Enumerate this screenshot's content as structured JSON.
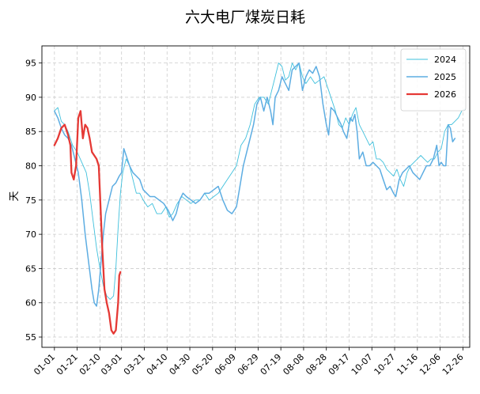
{
  "chart_data": {
    "type": "line",
    "title": "六大电厂煤炭日耗",
    "xlabel": "",
    "ylabel": "天",
    "ylim": [
      53.5,
      97.5
    ],
    "yticks": [
      55,
      60,
      65,
      70,
      75,
      80,
      85,
      90,
      95
    ],
    "xlim": [
      -11,
      365
    ],
    "x_tick_days": [
      0,
      20,
      40,
      59,
      79,
      99,
      119,
      139,
      159,
      179,
      199,
      219,
      239,
      259,
      279,
      299,
      319,
      339,
      359
    ],
    "x_tick_labels": [
      "01-01",
      "01-21",
      "02-10",
      "03-01",
      "03-21",
      "04-10",
      "04-30",
      "05-20",
      "06-09",
      "06-29",
      "07-19",
      "08-08",
      "08-28",
      "09-17",
      "10-07",
      "10-27",
      "11-16",
      "12-06",
      "12-26"
    ],
    "grid": true,
    "legend_position": "top-right",
    "series": [
      {
        "name": "2024",
        "color": "#3fc0dc",
        "width": 0.9,
        "points": [
          [
            0,
            88
          ],
          [
            3,
            88.5
          ],
          [
            6,
            86.5
          ],
          [
            9,
            86
          ],
          [
            12,
            85
          ],
          [
            16,
            83
          ],
          [
            20,
            82
          ],
          [
            24,
            80.5
          ],
          [
            28,
            79
          ],
          [
            31,
            76
          ],
          [
            34,
            72
          ],
          [
            37,
            68
          ],
          [
            40,
            65
          ],
          [
            43,
            62.5
          ],
          [
            46,
            61
          ],
          [
            49,
            60.5
          ],
          [
            52,
            61
          ],
          [
            54,
            65
          ],
          [
            56,
            71
          ],
          [
            58,
            76
          ],
          [
            60,
            79
          ],
          [
            63,
            81
          ],
          [
            66,
            80
          ],
          [
            69,
            78
          ],
          [
            72,
            76
          ],
          [
            75,
            76
          ],
          [
            78,
            75
          ],
          [
            82,
            74
          ],
          [
            86,
            74.5
          ],
          [
            90,
            73
          ],
          [
            94,
            73
          ],
          [
            98,
            74
          ],
          [
            101,
            72.5
          ],
          [
            104,
            73
          ],
          [
            108,
            74.5
          ],
          [
            112,
            75.5
          ],
          [
            116,
            75
          ],
          [
            120,
            74.5
          ],
          [
            124,
            75
          ],
          [
            128,
            75
          ],
          [
            132,
            76
          ],
          [
            136,
            75
          ],
          [
            140,
            75.5
          ],
          [
            144,
            76
          ],
          [
            148,
            77
          ],
          [
            152,
            78
          ],
          [
            156,
            79
          ],
          [
            160,
            80
          ],
          [
            164,
            83
          ],
          [
            168,
            84
          ],
          [
            172,
            86
          ],
          [
            176,
            89
          ],
          [
            180,
            90
          ],
          [
            184,
            90
          ],
          [
            188,
            89
          ],
          [
            191,
            91
          ],
          [
            194,
            93
          ],
          [
            197,
            95
          ],
          [
            200,
            94.5
          ],
          [
            203,
            92.5
          ],
          [
            206,
            93
          ],
          [
            209,
            95
          ],
          [
            212,
            94
          ],
          [
            215,
            95
          ],
          [
            218,
            93
          ],
          [
            221,
            92
          ],
          [
            225,
            93
          ],
          [
            229,
            92
          ],
          [
            233,
            92.5
          ],
          [
            237,
            93
          ],
          [
            241,
            91
          ],
          [
            244,
            89.5
          ],
          [
            247,
            88
          ],
          [
            250,
            86
          ],
          [
            253,
            85.5
          ],
          [
            256,
            87
          ],
          [
            259,
            86
          ],
          [
            262,
            87.5
          ],
          [
            265,
            88.5
          ],
          [
            268,
            86
          ],
          [
            271,
            85
          ],
          [
            274,
            84
          ],
          [
            277,
            83
          ],
          [
            280,
            83.5
          ],
          [
            283,
            81
          ],
          [
            286,
            81
          ],
          [
            289,
            80.5
          ],
          [
            292,
            79.5
          ],
          [
            295,
            79
          ],
          [
            298,
            78.5
          ],
          [
            301,
            79.5
          ],
          [
            304,
            78
          ],
          [
            307,
            77
          ],
          [
            310,
            79
          ],
          [
            313,
            80
          ],
          [
            316,
            80.5
          ],
          [
            319,
            81
          ],
          [
            322,
            81.5
          ],
          [
            325,
            81
          ],
          [
            328,
            80.5
          ],
          [
            331,
            81
          ],
          [
            334,
            81
          ],
          [
            337,
            82
          ],
          [
            340,
            82.5
          ],
          [
            343,
            85
          ],
          [
            346,
            86
          ],
          [
            349,
            86
          ],
          [
            352,
            86.5
          ],
          [
            355,
            87
          ],
          [
            358,
            88
          ],
          [
            361,
            88.3
          ]
        ]
      },
      {
        "name": "2025",
        "color": "#5dade2",
        "width": 1.5,
        "points": [
          [
            0,
            88
          ],
          [
            3,
            87
          ],
          [
            6,
            85.5
          ],
          [
            9,
            84.5
          ],
          [
            12,
            84
          ],
          [
            15,
            83
          ],
          [
            18,
            81
          ],
          [
            21,
            79
          ],
          [
            24,
            75
          ],
          [
            27,
            70
          ],
          [
            30,
            66
          ],
          [
            33,
            62
          ],
          [
            35,
            60
          ],
          [
            37,
            59.5
          ],
          [
            39,
            62
          ],
          [
            41,
            66
          ],
          [
            43,
            70
          ],
          [
            45,
            73
          ],
          [
            48,
            75
          ],
          [
            51,
            77
          ],
          [
            54,
            77.5
          ],
          [
            57,
            78.5
          ],
          [
            59,
            79
          ],
          [
            61,
            82.5
          ],
          [
            63,
            81.5
          ],
          [
            66,
            80
          ],
          [
            69,
            79
          ],
          [
            72,
            78.5
          ],
          [
            75,
            78
          ],
          [
            78,
            76.5
          ],
          [
            81,
            76
          ],
          [
            84,
            75.5
          ],
          [
            88,
            75.5
          ],
          [
            92,
            75
          ],
          [
            96,
            74.5
          ],
          [
            100,
            73.5
          ],
          [
            104,
            72
          ],
          [
            107,
            73
          ],
          [
            110,
            75
          ],
          [
            113,
            76
          ],
          [
            116,
            75.5
          ],
          [
            120,
            75
          ],
          [
            124,
            74.5
          ],
          [
            128,
            75
          ],
          [
            132,
            76
          ],
          [
            136,
            76
          ],
          [
            140,
            76.5
          ],
          [
            144,
            77
          ],
          [
            148,
            75
          ],
          [
            152,
            73.5
          ],
          [
            156,
            73
          ],
          [
            160,
            74
          ],
          [
            163,
            77
          ],
          [
            166,
            80
          ],
          [
            169,
            82
          ],
          [
            172,
            84
          ],
          [
            175,
            86
          ],
          [
            178,
            89
          ],
          [
            181,
            90
          ],
          [
            184,
            88
          ],
          [
            187,
            90
          ],
          [
            190,
            88
          ],
          [
            192,
            86
          ],
          [
            194,
            90
          ],
          [
            197,
            91
          ],
          [
            200,
            93
          ],
          [
            203,
            92
          ],
          [
            206,
            91
          ],
          [
            209,
            94
          ],
          [
            212,
            94.5
          ],
          [
            215,
            95
          ],
          [
            218,
            91
          ],
          [
            221,
            93
          ],
          [
            224,
            94
          ],
          [
            227,
            93.5
          ],
          [
            230,
            94.5
          ],
          [
            233,
            93
          ],
          [
            236,
            89
          ],
          [
            239,
            86
          ],
          [
            241,
            84.5
          ],
          [
            243,
            88.5
          ],
          [
            246,
            88
          ],
          [
            249,
            87
          ],
          [
            252,
            86
          ],
          [
            254,
            85
          ],
          [
            257,
            84
          ],
          [
            260,
            87
          ],
          [
            262,
            86.5
          ],
          [
            264,
            87.5
          ],
          [
            266,
            85
          ],
          [
            268,
            81
          ],
          [
            271,
            82
          ],
          [
            274,
            80
          ],
          [
            277,
            80
          ],
          [
            280,
            80.5
          ],
          [
            283,
            80
          ],
          [
            286,
            79.5
          ],
          [
            289,
            78
          ],
          [
            292,
            76.5
          ],
          [
            295,
            77
          ],
          [
            298,
            76
          ],
          [
            300,
            75.5
          ],
          [
            303,
            78
          ],
          [
            306,
            79
          ],
          [
            309,
            79.5
          ],
          [
            312,
            80
          ],
          [
            315,
            79
          ],
          [
            318,
            78.5
          ],
          [
            321,
            78
          ],
          [
            324,
            79
          ],
          [
            327,
            80
          ],
          [
            330,
            80
          ],
          [
            333,
            81
          ],
          [
            336,
            83
          ],
          [
            338,
            80
          ],
          [
            340,
            80.5
          ],
          [
            342,
            80
          ],
          [
            344,
            80
          ],
          [
            346,
            86
          ],
          [
            348,
            85.5
          ],
          [
            350,
            83.5
          ],
          [
            352,
            84
          ]
        ]
      },
      {
        "name": "2026",
        "color": "#e53935",
        "width": 2.3,
        "points": [
          [
            0,
            83
          ],
          [
            3,
            84
          ],
          [
            6,
            85.5
          ],
          [
            9,
            86
          ],
          [
            12,
            84.5
          ],
          [
            14,
            83
          ],
          [
            15,
            79
          ],
          [
            17,
            78
          ],
          [
            19,
            80
          ],
          [
            21,
            87
          ],
          [
            23,
            88
          ],
          [
            25,
            84
          ],
          [
            27,
            86
          ],
          [
            29,
            85.5
          ],
          [
            31,
            84
          ],
          [
            33,
            82
          ],
          [
            35,
            81.5
          ],
          [
            37,
            81
          ],
          [
            39,
            80
          ],
          [
            40,
            76
          ],
          [
            42,
            68
          ],
          [
            44,
            62
          ],
          [
            46,
            60
          ],
          [
            48,
            58.5
          ],
          [
            50,
            56
          ],
          [
            52,
            55.5
          ],
          [
            54,
            56
          ],
          [
            56,
            60
          ],
          [
            57,
            64
          ],
          [
            58,
            64.5
          ]
        ]
      }
    ]
  }
}
